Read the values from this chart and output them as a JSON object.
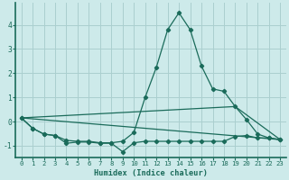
{
  "xlabel": "Humidex (Indice chaleur)",
  "bg_color": "#cdeaea",
  "grid_color": "#aacfcf",
  "line_color": "#1a6b5a",
  "xlim": [
    -0.5,
    23.5
  ],
  "ylim": [
    -1.5,
    4.9
  ],
  "xticks": [
    0,
    1,
    2,
    3,
    4,
    5,
    6,
    7,
    8,
    9,
    10,
    11,
    12,
    13,
    14,
    15,
    16,
    17,
    18,
    19,
    20,
    21,
    22,
    23
  ],
  "yticks": [
    -1,
    0,
    1,
    2,
    3,
    4
  ],
  "series_main": {
    "x": [
      0,
      1,
      2,
      3,
      4,
      5,
      6,
      7,
      8,
      9,
      10,
      11,
      12,
      13,
      14,
      15,
      16,
      17,
      18,
      19,
      20,
      21,
      22,
      23
    ],
    "y": [
      0.15,
      -0.28,
      -0.52,
      -0.58,
      -0.78,
      -0.82,
      -0.82,
      -0.88,
      -0.88,
      -0.82,
      -0.45,
      1.0,
      2.25,
      3.8,
      4.5,
      3.8,
      2.3,
      1.35,
      1.25,
      0.62,
      0.08,
      -0.52,
      -0.68,
      -0.75
    ]
  },
  "series_low": {
    "x": [
      0,
      1,
      2,
      3,
      4,
      5,
      6,
      7,
      8,
      9,
      10,
      11,
      12,
      13,
      14,
      15,
      16,
      17,
      18,
      19,
      20,
      21,
      22,
      23
    ],
    "y": [
      0.15,
      -0.28,
      -0.52,
      -0.58,
      -0.9,
      -0.85,
      -0.85,
      -0.9,
      -0.9,
      -1.25,
      -0.88,
      -0.82,
      -0.82,
      -0.82,
      -0.82,
      -0.82,
      -0.82,
      -0.82,
      -0.82,
      -0.62,
      -0.58,
      -0.68,
      -0.68,
      -0.75
    ]
  },
  "line1": {
    "x": [
      0,
      23
    ],
    "y": [
      0.15,
      -0.75
    ]
  },
  "line2": {
    "x": [
      0,
      19,
      23
    ],
    "y": [
      0.15,
      0.62,
      -0.75
    ]
  }
}
